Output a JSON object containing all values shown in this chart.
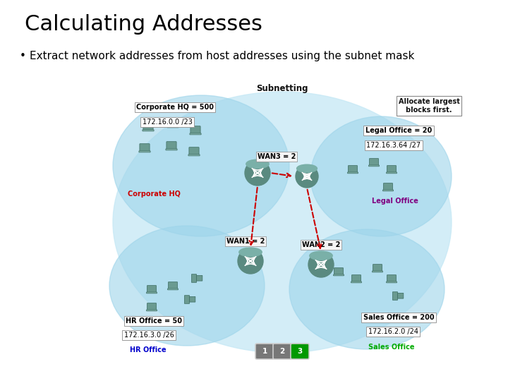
{
  "title": "Calculating Addresses",
  "bullet": "Extract network addresses from host addresses using the subnet mask",
  "bg_color": "#ffffff",
  "title_color": "#000000",
  "bullet_color": "#000000",
  "title_fontsize": 22,
  "bullet_fontsize": 11,
  "diagram_title": "Subnetting",
  "diagram_subtitle": "Allocate largest\nblocks first.",
  "corp_hq_label": "Corporate HQ = 500",
  "corp_hq_ip": "172.16.0.0 /23",
  "corp_hq_name": "Corporate HQ",
  "legal_label": "Legal Office = 20",
  "legal_ip": "172.16.3.64 /27",
  "legal_name": "Legal Office",
  "hr_label": "HR Office = 50",
  "hr_ip": "172.16.3.0 /26",
  "hr_name": "HR Office",
  "sales_label": "Sales Office = 200",
  "sales_ip": "172.16.2.0 /24",
  "sales_name": "Sales Office",
  "wan1": "WAN1 = 2",
  "wan2": "WAN2 = 2",
  "wan3": "WAN3 = 2",
  "label_box_color": "#ffffff",
  "label_box_edge": "#999999",
  "corp_hq_name_color": "#cc0000",
  "legal_name_color": "#800080",
  "hr_name_color": "#0000cc",
  "sales_name_color": "#00aa00",
  "arrow_color": "#cc0000",
  "step1_color": "#777777",
  "step2_color": "#777777",
  "step3_color": "#009900",
  "bubble_main": "#c5e8f5",
  "bubble_sub": "#9dd4ea",
  "router_color": "#5a8a80",
  "device_color": "#6a9a90"
}
